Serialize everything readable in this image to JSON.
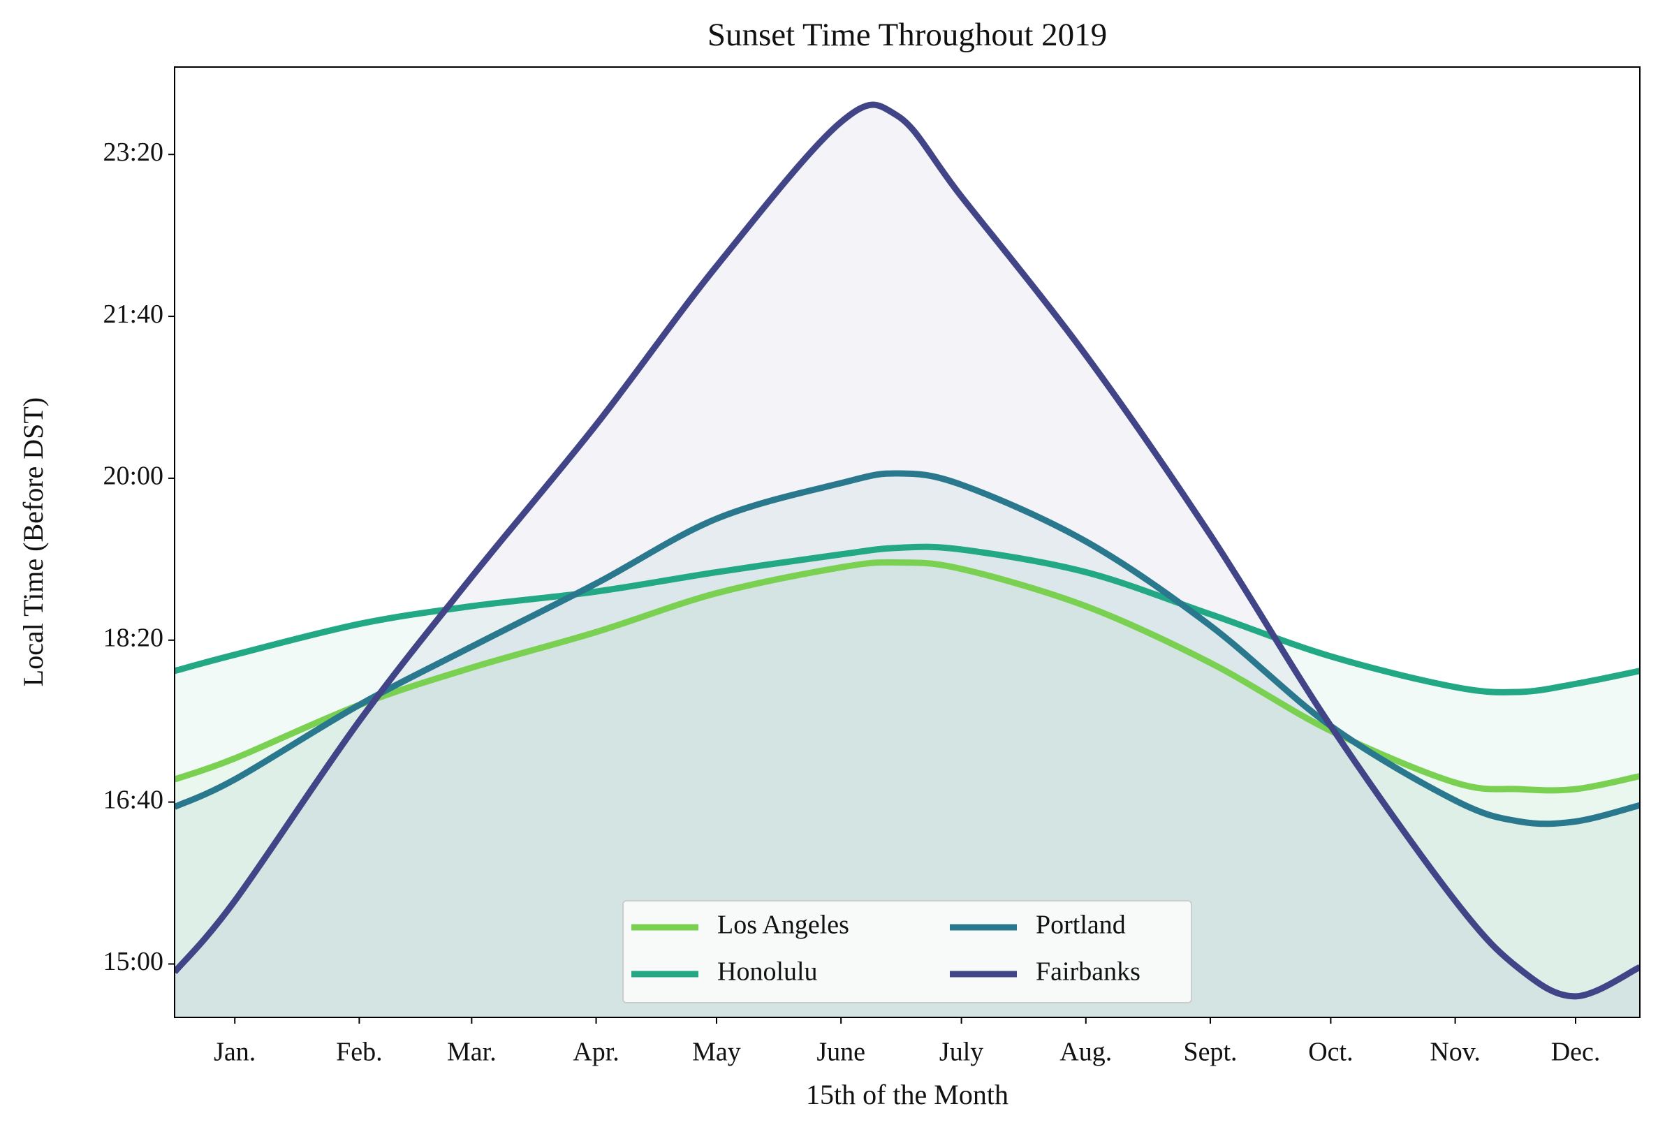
{
  "chart_data": {
    "type": "line",
    "title": "Sunset Time Throughout 2019",
    "xlabel": "15th of the Month",
    "ylabel": "Local Time (Before DST)",
    "x": [
      0,
      15,
      46,
      74,
      105,
      135,
      166,
      180,
      196,
      227,
      258,
      288,
      319,
      335,
      349,
      365
    ],
    "series": [
      {
        "name": "Los Angeles",
        "color": "#7ad151",
        "values": [
          1014,
          1027,
          1060,
          1083,
          1105,
          1129,
          1145,
          1148,
          1144,
          1121,
          1086,
          1044,
          1012,
          1008,
          1008,
          1016
        ]
      },
      {
        "name": "Honolulu",
        "color": "#22a884",
        "values": [
          1081,
          1091,
          1110,
          1121,
          1130,
          1142,
          1153,
          1157,
          1156,
          1142,
          1116,
          1090,
          1071,
          1068,
          1073,
          1081
        ]
      },
      {
        "name": "Portland",
        "color": "#2a788e",
        "values": [
          997,
          1014,
          1060,
          1096,
          1135,
          1175,
          1197,
          1203,
          1196,
          1161,
          1109,
          1047,
          1001,
          988,
          988,
          998
        ]
      },
      {
        "name": "Fairbanks",
        "color": "#414487",
        "values": [
          895,
          939,
          1050,
          1139,
          1233,
          1331,
          1420,
          1424,
          1374,
          1276,
          1165,
          1047,
          939,
          897,
          880,
          898
        ]
      }
    ],
    "xlim": [
      0,
      365
    ],
    "xticks": [
      {
        "value": 15,
        "label": "Jan."
      },
      {
        "value": 46,
        "label": "Feb."
      },
      {
        "value": 74,
        "label": "Mar."
      },
      {
        "value": 105,
        "label": "Apr."
      },
      {
        "value": 135,
        "label": "May"
      },
      {
        "value": 166,
        "label": "June"
      },
      {
        "value": 196,
        "label": "July"
      },
      {
        "value": 227,
        "label": "Aug."
      },
      {
        "value": 258,
        "label": "Sept."
      },
      {
        "value": 288,
        "label": "Oct."
      },
      {
        "value": 319,
        "label": "Nov."
      },
      {
        "value": 349,
        "label": "Dec."
      }
    ],
    "ylim": [
      867,
      1454
    ],
    "yticks": [
      {
        "value": 900,
        "label": "15:00"
      },
      {
        "value": 1000,
        "label": "16:40"
      },
      {
        "value": 1100,
        "label": "18:20"
      },
      {
        "value": 1200,
        "label": "20:00"
      },
      {
        "value": 1300,
        "label": "21:40"
      },
      {
        "value": 1400,
        "label": "23:20"
      }
    ],
    "fill_to_axis": true,
    "legend": "lower center"
  }
}
